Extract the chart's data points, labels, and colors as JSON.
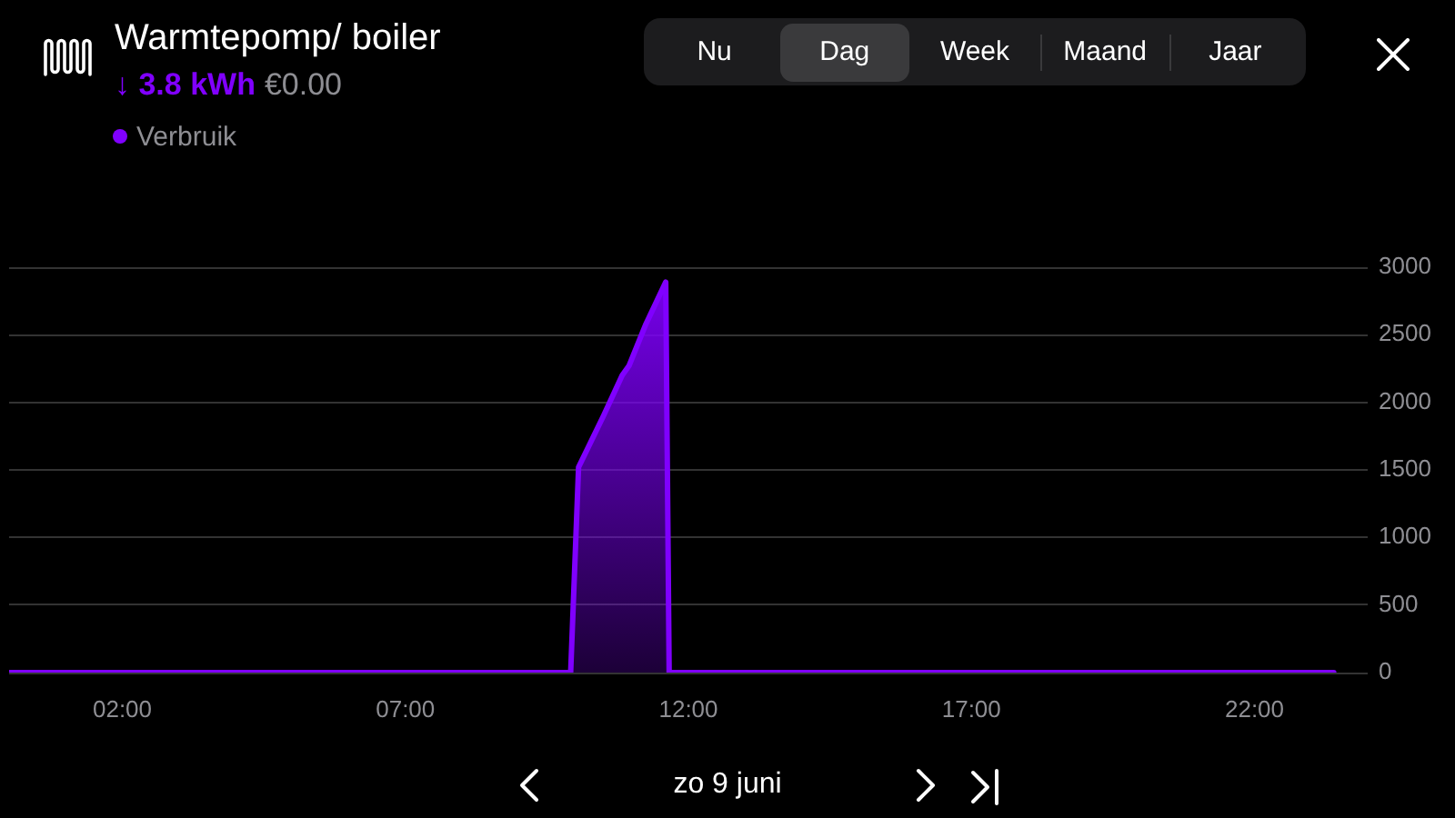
{
  "chart_data": {
    "type": "area",
    "title": "Warmtepomp/ boiler",
    "subtitle": "↓ 3.8 kWh",
    "annotations": [
      "€0.00",
      "Nu",
      "Dag",
      "Week",
      "Maand",
      "Jaar",
      "zo 9 juni"
    ],
    "x": [
      0,
      9.92,
      10.06,
      10.5,
      10.83,
      10.95,
      11.25,
      11.6,
      11.66,
      23.4
    ],
    "series": [
      {
        "name": "Verbruik",
        "color": "#8000ff",
        "values": [
          0,
          0,
          1520,
          1900,
          2200,
          2270,
          2580,
          2890,
          0,
          0
        ]
      }
    ],
    "xlim": [
      0,
      24
    ],
    "xticks": [
      {
        "value": 2,
        "label": "02:00"
      },
      {
        "value": 7,
        "label": "07:00"
      },
      {
        "value": 12,
        "label": "12:00"
      },
      {
        "value": 17,
        "label": "17:00"
      },
      {
        "value": 22,
        "label": "22:00"
      }
    ],
    "ylim": [
      0,
      3000
    ],
    "yticks": [
      0,
      500,
      1000,
      1500,
      2000,
      2500,
      3000
    ],
    "grid": "y",
    "legend": "top left"
  }
}
